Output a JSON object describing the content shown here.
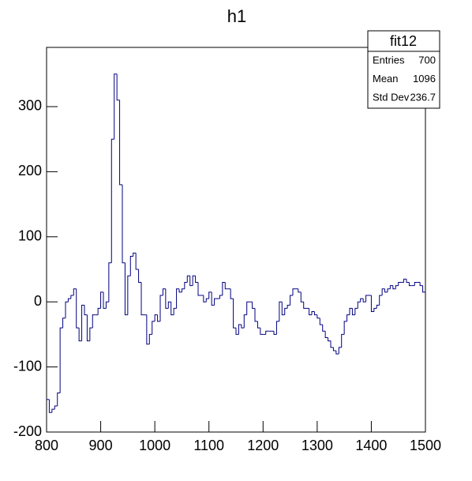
{
  "chart_data": {
    "type": "histogram",
    "title": "h1",
    "bins": [
      800,
      805,
      810,
      815,
      820,
      825,
      830,
      835,
      840,
      845,
      850,
      855,
      860,
      865,
      870,
      875,
      880,
      885,
      890,
      895,
      900,
      905,
      910,
      915,
      920,
      925,
      930,
      935,
      940,
      945,
      950,
      955,
      960,
      965,
      970,
      975,
      980,
      985,
      990,
      995,
      1000,
      1005,
      1010,
      1015,
      1020,
      1025,
      1030,
      1035,
      1040,
      1045,
      1050,
      1055,
      1060,
      1065,
      1070,
      1075,
      1080,
      1085,
      1090,
      1095,
      1100,
      1105,
      1110,
      1115,
      1120,
      1125,
      1130,
      1135,
      1140,
      1145,
      1150,
      1155,
      1160,
      1165,
      1170,
      1175,
      1180,
      1185,
      1190,
      1195,
      1200,
      1205,
      1210,
      1215,
      1220,
      1225,
      1230,
      1235,
      1240,
      1245,
      1250,
      1255,
      1260,
      1265,
      1270,
      1275,
      1280,
      1285,
      1290,
      1295,
      1300,
      1305,
      1310,
      1315,
      1320,
      1325,
      1330,
      1335,
      1340,
      1345,
      1350,
      1355,
      1360,
      1365,
      1370,
      1375,
      1380,
      1385,
      1390,
      1395,
      1400,
      1405,
      1410,
      1415,
      1420,
      1425,
      1430,
      1435,
      1440,
      1445,
      1450,
      1455,
      1460,
      1465,
      1470,
      1475,
      1480,
      1485,
      1490,
      1495,
      1500
    ],
    "values": [
      -150,
      -170,
      -165,
      -160,
      -140,
      -40,
      -25,
      0,
      5,
      10,
      20,
      -40,
      -60,
      -5,
      -20,
      -60,
      -40,
      -20,
      -20,
      -10,
      15,
      -10,
      0,
      60,
      250,
      350,
      310,
      180,
      60,
      -20,
      40,
      70,
      75,
      50,
      30,
      -20,
      -20,
      -65,
      -50,
      -30,
      -20,
      -30,
      10,
      20,
      -10,
      0,
      -20,
      -10,
      20,
      15,
      20,
      30,
      40,
      25,
      40,
      30,
      10,
      10,
      0,
      5,
      15,
      -5,
      5,
      5,
      10,
      30,
      20,
      20,
      5,
      -40,
      -50,
      -35,
      -40,
      -20,
      0,
      0,
      -10,
      -30,
      -40,
      -50,
      -50,
      -45,
      -45,
      -45,
      -50,
      -30,
      0,
      -20,
      -10,
      -5,
      10,
      20,
      20,
      15,
      0,
      -10,
      -10,
      -20,
      -15,
      -20,
      -25,
      -35,
      -45,
      -55,
      -60,
      -70,
      -75,
      -80,
      -70,
      -50,
      -30,
      -20,
      -10,
      -20,
      -10,
      0,
      5,
      0,
      10,
      10,
      -15,
      -10,
      -5,
      10,
      20,
      15,
      20,
      25,
      20,
      25,
      30,
      30,
      35,
      30,
      25,
      25,
      30,
      30,
      25,
      15
    ],
    "color": "#000080",
    "xlim": [
      800,
      1500
    ],
    "xticks": [
      800,
      900,
      1000,
      1100,
      1200,
      1300,
      1400,
      1500
    ],
    "ylim": [
      -200,
      391
    ],
    "yticks": [
      -200,
      -100,
      0,
      100,
      200,
      300
    ],
    "stats": {
      "title": "fit12",
      "rows": [
        [
          "Entries",
          "700"
        ],
        [
          "Mean",
          "1096"
        ],
        [
          "Std Dev",
          "236.7"
        ]
      ]
    }
  }
}
